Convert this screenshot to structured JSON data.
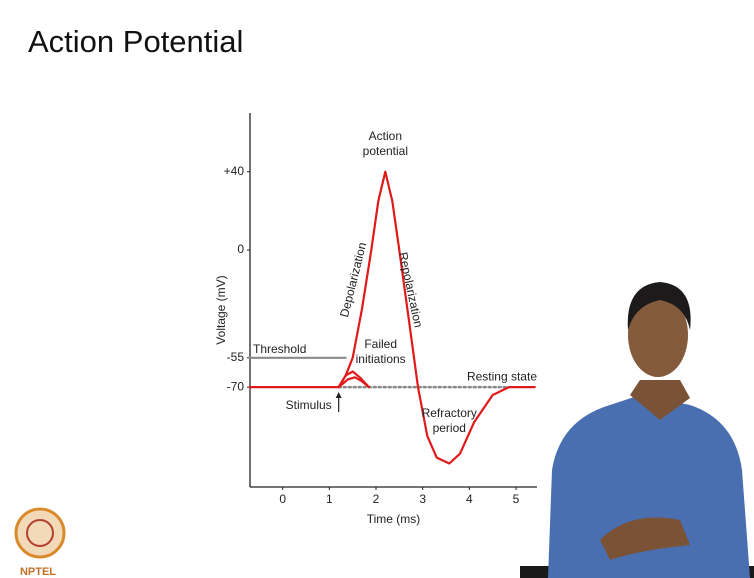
{
  "chart_data": {
    "type": "line",
    "title": "Action Potential",
    "xlabel": "Time (ms)",
    "ylabel": "Voltage (mV)",
    "xlim": [
      -0.7,
      5.45
    ],
    "ylim": [
      -121,
      70
    ],
    "xticks": [
      0,
      1,
      2,
      3,
      4,
      5
    ],
    "yticks": [
      {
        "value": 40,
        "label": "+40"
      },
      0,
      -55,
      -70
    ],
    "series": [
      {
        "color": "#e0191b",
        "style": "solid",
        "x": [
          -0.7,
          1.2,
          1.35,
          1.5,
          1.7,
          1.9,
          2.05,
          2.2,
          2.35,
          2.5,
          2.7,
          2.9,
          3.1,
          3.3,
          3.57,
          3.8,
          4.1,
          4.5,
          4.85,
          5.4
        ],
        "values": [
          -70,
          -70,
          -64,
          -55,
          -30,
          0,
          25,
          40,
          25,
          0,
          -35,
          -70,
          -95,
          -106,
          -109,
          -104,
          -88,
          -74,
          -70,
          -70
        ]
      },
      {
        "name": "Threshold",
        "color": "#8a8a8a",
        "style": "solid",
        "x": [
          -0.7,
          1.35
        ],
        "values": [
          -55,
          -55
        ]
      },
      {
        "name": "Resting state",
        "color": "#8a8a8a",
        "style": "dotted",
        "x": [
          1.2,
          4.85
        ],
        "values": [
          -70,
          -70
        ]
      },
      {
        "name": "Failed initiations",
        "color": "#e0191b",
        "style": "solid",
        "x": [
          1.2,
          1.35,
          1.5,
          1.65,
          1.85
        ],
        "values": [
          -70,
          -64,
          -62,
          -65,
          -70
        ]
      },
      {
        "color": "#e0191b",
        "style": "solid",
        "x": [
          1.2,
          1.4,
          1.55,
          1.7,
          1.85
        ],
        "values": [
          -70,
          -66,
          -65,
          -67,
          -70
        ]
      }
    ],
    "annotations": [
      "Action potential",
      "Depolarization",
      "Repolarization",
      "Refractory period",
      "Stimulus"
    ]
  },
  "logo": "NPTEL"
}
